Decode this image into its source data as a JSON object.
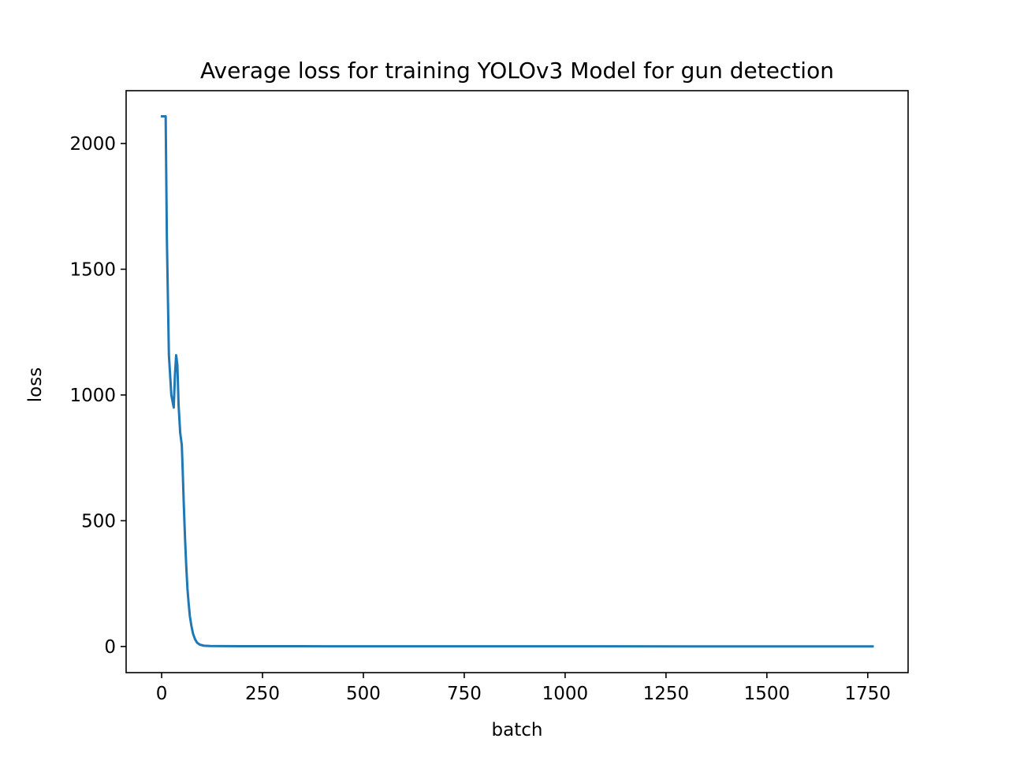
{
  "chart_data": {
    "type": "line",
    "title": "Average loss for training YOLOv3 Model for gun detection",
    "xlabel": "batch",
    "ylabel": "loss",
    "xlim": [
      -88,
      1850
    ],
    "ylim": [
      -104,
      2210
    ],
    "xticks": [
      0,
      250,
      500,
      750,
      1000,
      1250,
      1500,
      1750
    ],
    "yticks": [
      0,
      500,
      1000,
      1500,
      2000
    ],
    "grid": false,
    "legend": "none",
    "series": [
      {
        "color": "#1f77b4",
        "x": [
          1,
          8,
          10,
          13,
          18,
          24,
          30,
          33,
          36,
          39,
          42,
          46,
          50,
          52,
          55,
          58,
          61,
          64,
          67,
          70,
          74,
          78,
          83,
          88,
          95,
          105,
          120,
          150,
          200,
          400,
          700,
          1000,
          1300,
          1600,
          1762
        ],
        "y": [
          2108,
          2108,
          2108,
          1620,
          1160,
          1000,
          950,
          1080,
          1158,
          1120,
          960,
          850,
          800,
          710,
          560,
          430,
          320,
          230,
          170,
          120,
          80,
          50,
          28,
          15,
          7,
          3,
          2,
          1.5,
          1,
          0.8,
          0.6,
          0.5,
          0.4,
          0.3,
          0.3
        ]
      }
    ]
  }
}
